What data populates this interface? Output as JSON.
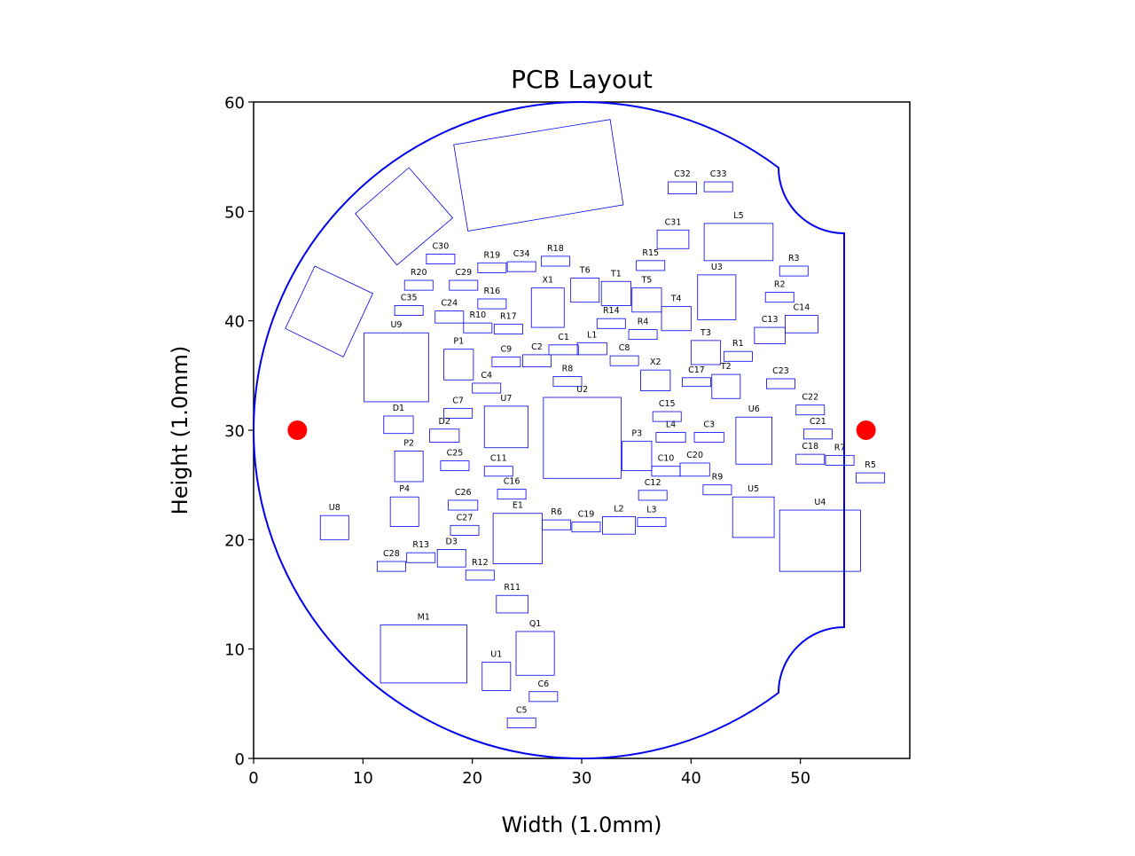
{
  "chart_data": {
    "type": "diagram",
    "title": "PCB Layout",
    "xlabel": "Width (1.0mm)",
    "ylabel": "Height (1.0mm)",
    "xlim": [
      0,
      60
    ],
    "ylim": [
      0,
      60
    ],
    "xticks": [
      0,
      10,
      20,
      30,
      40,
      50
    ],
    "yticks": [
      0,
      10,
      20,
      30,
      40,
      50,
      60
    ],
    "grid": false,
    "board_outline": {
      "circle_center": [
        30,
        30
      ],
      "circle_radius": 30,
      "top_notch": {
        "start": [
          48,
          54
        ],
        "end": [
          54,
          48
        ],
        "arc_center": [
          54,
          54
        ]
      },
      "bottom_notch": {
        "start": [
          54,
          12
        ],
        "end": [
          48,
          6
        ],
        "arc_center": [
          54,
          6
        ]
      },
      "color": "#0000ee"
    },
    "fiducials": [
      {
        "x": 4,
        "y": 30,
        "color": "#ff0000"
      },
      {
        "x": 56,
        "y": 30,
        "color": "#ff0000"
      }
    ],
    "component_color": "#0000ee",
    "components": [
      {
        "label": "C32",
        "x": 37.9,
        "y": 51.6,
        "w": 2.6,
        "h": 1.1
      },
      {
        "label": "C33",
        "x": 41.2,
        "y": 51.8,
        "w": 2.6,
        "h": 0.9
      },
      {
        "label": "C31",
        "x": 36.9,
        "y": 46.6,
        "w": 2.9,
        "h": 1.7
      },
      {
        "label": "L5",
        "x": 41.2,
        "y": 45.5,
        "w": 6.3,
        "h": 3.4
      },
      {
        "label": "C30",
        "x": 15.8,
        "y": 45.2,
        "w": 2.6,
        "h": 0.9
      },
      {
        "label": "R19",
        "x": 20.5,
        "y": 44.4,
        "w": 2.6,
        "h": 0.9
      },
      {
        "label": "C34",
        "x": 23.2,
        "y": 44.5,
        "w": 2.6,
        "h": 0.9
      },
      {
        "label": "R18",
        "x": 26.3,
        "y": 45.0,
        "w": 2.6,
        "h": 0.9
      },
      {
        "label": "R15",
        "x": 35.0,
        "y": 44.6,
        "w": 2.6,
        "h": 0.9
      },
      {
        "label": "R3",
        "x": 48.1,
        "y": 44.1,
        "w": 2.6,
        "h": 0.9
      },
      {
        "label": "R20",
        "x": 13.8,
        "y": 42.8,
        "w": 2.6,
        "h": 0.9
      },
      {
        "label": "C29",
        "x": 17.9,
        "y": 42.8,
        "w": 2.6,
        "h": 0.9
      },
      {
        "label": "T6",
        "x": 29.0,
        "y": 41.7,
        "w": 2.6,
        "h": 2.2
      },
      {
        "label": "T1",
        "x": 31.8,
        "y": 41.4,
        "w": 2.7,
        "h": 2.2
      },
      {
        "label": "T5",
        "x": 34.6,
        "y": 40.8,
        "w": 2.7,
        "h": 2.2
      },
      {
        "label": "U3",
        "x": 40.6,
        "y": 40.1,
        "w": 3.5,
        "h": 4.1
      },
      {
        "label": "R2",
        "x": 46.8,
        "y": 41.7,
        "w": 2.6,
        "h": 0.9
      },
      {
        "label": "X1",
        "x": 25.4,
        "y": 39.4,
        "w": 3.0,
        "h": 3.6
      },
      {
        "label": "R16",
        "x": 20.5,
        "y": 41.1,
        "w": 2.6,
        "h": 0.9
      },
      {
        "label": "C35",
        "x": 12.9,
        "y": 40.5,
        "w": 2.6,
        "h": 0.9
      },
      {
        "label": "C24",
        "x": 16.6,
        "y": 39.8,
        "w": 2.6,
        "h": 1.1
      },
      {
        "label": "R10",
        "x": 19.2,
        "y": 38.9,
        "w": 2.6,
        "h": 0.9
      },
      {
        "label": "R17",
        "x": 22.0,
        "y": 38.8,
        "w": 2.6,
        "h": 0.9
      },
      {
        "label": "R14",
        "x": 31.4,
        "y": 39.3,
        "w": 2.6,
        "h": 0.9
      },
      {
        "label": "T4",
        "x": 37.3,
        "y": 39.1,
        "w": 2.7,
        "h": 2.2
      },
      {
        "label": "R4",
        "x": 34.3,
        "y": 38.3,
        "w": 2.6,
        "h": 0.9
      },
      {
        "label": "C13",
        "x": 45.8,
        "y": 37.9,
        "w": 2.8,
        "h": 1.5
      },
      {
        "label": "C14",
        "x": 48.6,
        "y": 38.9,
        "w": 3.0,
        "h": 1.6
      },
      {
        "label": "U9",
        "x": 10.1,
        "y": 32.6,
        "w": 5.9,
        "h": 6.3
      },
      {
        "label": "P1",
        "x": 17.4,
        "y": 34.6,
        "w": 2.7,
        "h": 2.8
      },
      {
        "label": "C1",
        "x": 27.0,
        "y": 36.9,
        "w": 2.7,
        "h": 0.9
      },
      {
        "label": "L1",
        "x": 29.6,
        "y": 36.9,
        "w": 2.7,
        "h": 1.1
      },
      {
        "label": "C9",
        "x": 21.8,
        "y": 35.8,
        "w": 2.6,
        "h": 0.9
      },
      {
        "label": "C2",
        "x": 24.6,
        "y": 35.8,
        "w": 2.6,
        "h": 1.1
      },
      {
        "label": "C8",
        "x": 32.6,
        "y": 35.9,
        "w": 2.6,
        "h": 0.9
      },
      {
        "label": "T3",
        "x": 40.0,
        "y": 36.0,
        "w": 2.7,
        "h": 2.2
      },
      {
        "label": "R1",
        "x": 43.0,
        "y": 36.3,
        "w": 2.6,
        "h": 0.9
      },
      {
        "label": "R8",
        "x": 27.4,
        "y": 34.0,
        "w": 2.6,
        "h": 0.9
      },
      {
        "label": "X2",
        "x": 35.4,
        "y": 33.6,
        "w": 2.7,
        "h": 1.9
      },
      {
        "label": "C4",
        "x": 20.0,
        "y": 33.4,
        "w": 2.6,
        "h": 0.9
      },
      {
        "label": "C17",
        "x": 39.2,
        "y": 34.0,
        "w": 2.6,
        "h": 0.8
      },
      {
        "label": "T2",
        "x": 41.9,
        "y": 32.9,
        "w": 2.6,
        "h": 2.2
      },
      {
        "label": "C23",
        "x": 46.9,
        "y": 33.8,
        "w": 2.6,
        "h": 0.9
      },
      {
        "label": "C7",
        "x": 17.4,
        "y": 31.1,
        "w": 2.6,
        "h": 0.9
      },
      {
        "label": "U2",
        "x": 26.5,
        "y": 25.6,
        "w": 7.1,
        "h": 7.4
      },
      {
        "label": "C15",
        "x": 36.5,
        "y": 30.8,
        "w": 2.6,
        "h": 0.9
      },
      {
        "label": "C22",
        "x": 49.6,
        "y": 31.4,
        "w": 2.6,
        "h": 0.9
      },
      {
        "label": "U7",
        "x": 21.1,
        "y": 28.4,
        "w": 4.0,
        "h": 3.8
      },
      {
        "label": "D1",
        "x": 11.9,
        "y": 29.7,
        "w": 2.7,
        "h": 1.6
      },
      {
        "label": "D2",
        "x": 16.1,
        "y": 28.9,
        "w": 2.7,
        "h": 1.2
      },
      {
        "label": "L4",
        "x": 36.8,
        "y": 28.9,
        "w": 2.7,
        "h": 0.9
      },
      {
        "label": "C3",
        "x": 40.3,
        "y": 28.9,
        "w": 2.7,
        "h": 0.9
      },
      {
        "label": "U6",
        "x": 44.1,
        "y": 26.9,
        "w": 3.3,
        "h": 4.3
      },
      {
        "label": "C21",
        "x": 50.3,
        "y": 29.2,
        "w": 2.6,
        "h": 0.9
      },
      {
        "label": "P3",
        "x": 33.7,
        "y": 26.3,
        "w": 2.7,
        "h": 2.7
      },
      {
        "label": "P2",
        "x": 12.9,
        "y": 25.3,
        "w": 2.6,
        "h": 2.8
      },
      {
        "label": "C25",
        "x": 17.1,
        "y": 26.3,
        "w": 2.6,
        "h": 0.9
      },
      {
        "label": "C18",
        "x": 49.6,
        "y": 26.9,
        "w": 2.6,
        "h": 0.9
      },
      {
        "label": "R7",
        "x": 52.3,
        "y": 26.8,
        "w": 2.6,
        "h": 0.9
      },
      {
        "label": "C11",
        "x": 21.1,
        "y": 25.8,
        "w": 2.6,
        "h": 0.9
      },
      {
        "label": "C10",
        "x": 36.4,
        "y": 25.8,
        "w": 2.6,
        "h": 0.9
      },
      {
        "label": "C20",
        "x": 39.0,
        "y": 25.8,
        "w": 2.7,
        "h": 1.2
      },
      {
        "label": "R5",
        "x": 55.1,
        "y": 25.2,
        "w": 2.6,
        "h": 0.9
      },
      {
        "label": "C16",
        "x": 22.3,
        "y": 23.7,
        "w": 2.6,
        "h": 0.9
      },
      {
        "label": "C12",
        "x": 35.2,
        "y": 23.6,
        "w": 2.6,
        "h": 0.9
      },
      {
        "label": "R9",
        "x": 41.1,
        "y": 24.1,
        "w": 2.6,
        "h": 0.9
      },
      {
        "label": "P4",
        "x": 12.5,
        "y": 21.2,
        "w": 2.6,
        "h": 2.7
      },
      {
        "label": "C26",
        "x": 17.8,
        "y": 22.7,
        "w": 2.7,
        "h": 0.9
      },
      {
        "label": "U5",
        "x": 43.8,
        "y": 20.2,
        "w": 3.8,
        "h": 3.7
      },
      {
        "label": "U4",
        "x": 48.1,
        "y": 17.1,
        "w": 7.4,
        "h": 5.6
      },
      {
        "label": "U8",
        "x": 6.1,
        "y": 20.0,
        "w": 2.6,
        "h": 2.2
      },
      {
        "label": "C27",
        "x": 18.0,
        "y": 20.4,
        "w": 2.6,
        "h": 0.9
      },
      {
        "label": "E1",
        "x": 21.9,
        "y": 17.8,
        "w": 4.5,
        "h": 4.6
      },
      {
        "label": "R6",
        "x": 26.4,
        "y": 20.9,
        "w": 2.6,
        "h": 0.9
      },
      {
        "label": "C19",
        "x": 29.1,
        "y": 20.7,
        "w": 2.6,
        "h": 0.9
      },
      {
        "label": "L2",
        "x": 31.9,
        "y": 20.5,
        "w": 3.0,
        "h": 1.6
      },
      {
        "label": "L3",
        "x": 35.1,
        "y": 21.2,
        "w": 2.6,
        "h": 0.8
      },
      {
        "label": "C28",
        "x": 11.3,
        "y": 17.1,
        "w": 2.6,
        "h": 0.9
      },
      {
        "label": "R13",
        "x": 14.0,
        "y": 17.9,
        "w": 2.6,
        "h": 0.9
      },
      {
        "label": "D3",
        "x": 16.8,
        "y": 17.5,
        "w": 2.6,
        "h": 1.6
      },
      {
        "label": "R12",
        "x": 19.4,
        "y": 16.3,
        "w": 2.6,
        "h": 0.9
      },
      {
        "label": "R11",
        "x": 22.2,
        "y": 13.3,
        "w": 2.9,
        "h": 1.6
      },
      {
        "label": "M1",
        "x": 11.6,
        "y": 6.9,
        "w": 7.9,
        "h": 5.3
      },
      {
        "label": "Q1",
        "x": 24.0,
        "y": 7.6,
        "w": 3.5,
        "h": 4.0
      },
      {
        "label": "U1",
        "x": 20.9,
        "y": 6.2,
        "w": 2.6,
        "h": 2.6
      },
      {
        "label": "C6",
        "x": 25.2,
        "y": 5.2,
        "w": 2.6,
        "h": 0.9
      },
      {
        "label": "C5",
        "x": 23.2,
        "y": 2.8,
        "w": 2.6,
        "h": 0.9
      }
    ],
    "rotated_components": [
      {
        "label": "",
        "points": [
          [
            18.3,
            56.1
          ],
          [
            32.6,
            58.4
          ],
          [
            33.8,
            50.6
          ],
          [
            19.6,
            48.2
          ]
        ]
      },
      {
        "label": "",
        "points": [
          [
            9.3,
            49.8
          ],
          [
            14.2,
            54.0
          ],
          [
            18.2,
            49.4
          ],
          [
            13.1,
            45.1
          ]
        ]
      },
      {
        "label": "",
        "points": [
          [
            2.9,
            39.3
          ],
          [
            8.2,
            36.7
          ],
          [
            10.9,
            42.5
          ],
          [
            5.6,
            45.0
          ]
        ]
      }
    ]
  }
}
